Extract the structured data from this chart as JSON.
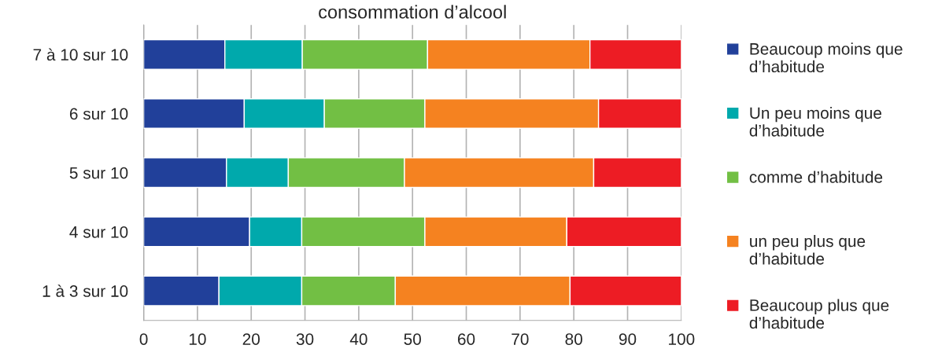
{
  "chart_data": {
    "type": "bar",
    "orientation": "horizontal",
    "stacked": true,
    "title": "consommation d’alcool",
    "categories": [
      "7 à 10 sur 10",
      "6 sur 10",
      "5 sur 10",
      "4 sur 10",
      "1 à 3 sur 10"
    ],
    "series": [
      {
        "name": "Beaucoup moins que d’habitude",
        "color": "#21409a",
        "values": [
          15.1,
          18.7,
          15.4,
          19.7,
          14.0
        ]
      },
      {
        "name": "Un peu moins que d’habitude",
        "color": "#00a9ac",
        "values": [
          14.4,
          14.9,
          11.5,
          9.7,
          15.4
        ]
      },
      {
        "name": "comme d’habitude",
        "color": "#72bf44",
        "values": [
          23.3,
          18.7,
          21.6,
          22.9,
          17.4
        ]
      },
      {
        "name": "un peu plus que d’habitude",
        "color": "#f58220",
        "values": [
          30.2,
          32.3,
          35.2,
          26.4,
          32.5
        ]
      },
      {
        "name": "Beaucoup plus que d’habitude",
        "color": "#ed1c24",
        "values": [
          17.0,
          15.4,
          16.3,
          21.3,
          20.7
        ]
      }
    ],
    "xlim": [
      0,
      100
    ],
    "xticks": [
      0,
      10,
      20,
      30,
      40,
      50,
      60,
      70,
      80,
      90,
      100
    ],
    "grid": "x",
    "legend": "right"
  }
}
